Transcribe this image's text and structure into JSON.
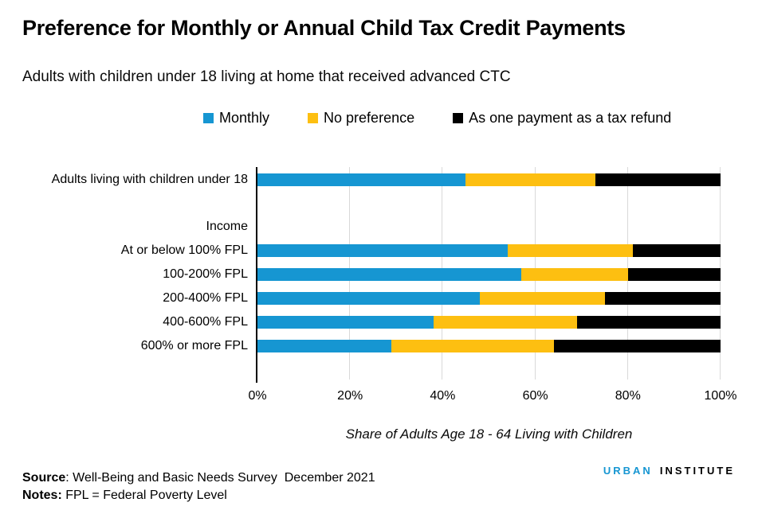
{
  "header": {
    "title": "Preference for Monthly or Annual Child Tax Credit Payments",
    "subtitle": "Adults with children under 18 living at home that received advanced CTC"
  },
  "legend": [
    {
      "label": "Monthly",
      "color": "#1696d2"
    },
    {
      "label": "No preference",
      "color": "#fdbf11"
    },
    {
      "label": "As one payment as a tax refund",
      "color": "#000000"
    }
  ],
  "chart_data": {
    "type": "bar",
    "orientation": "horizontal",
    "stacked": true,
    "unit": "percent",
    "categories": [
      "Adults living with children under 18",
      "At or below 100% FPL",
      "100-200% FPL",
      "200-400% FPL",
      "400-600% FPL",
      "600% or more FPL"
    ],
    "group_label": "Income",
    "group_label_applies_to": [
      "At or below 100% FPL",
      "100-200% FPL",
      "200-400% FPL",
      "400-600% FPL",
      "600% or more FPL"
    ],
    "series": [
      {
        "name": "Monthly",
        "color": "#1696d2",
        "values": [
          45,
          54,
          57,
          48,
          38,
          29
        ]
      },
      {
        "name": "No preference",
        "color": "#fdbf11",
        "values": [
          28,
          27,
          23,
          27,
          31,
          35
        ]
      },
      {
        "name": "As one payment as a tax refund",
        "color": "#000000",
        "values": [
          27,
          19,
          20,
          25,
          31,
          36
        ]
      }
    ],
    "xlim": [
      0,
      100
    ],
    "x_ticks": [
      "0%",
      "20%",
      "40%",
      "60%",
      "80%",
      "100%"
    ],
    "xlabel": "Share of Adults Age 18  - 64 Living with Children",
    "grid": true,
    "gridline_color": "#d9d9d9",
    "axis_color": "#000000"
  },
  "footer": {
    "source_label": "Source",
    "source_text": ": Well-Being and Basic Needs Survey  December 2021",
    "notes_label": "Notes:",
    "notes_text": " FPL = Federal Poverty Level",
    "logo": {
      "part1": "URBAN",
      "part2": "INSTITUTE"
    }
  }
}
